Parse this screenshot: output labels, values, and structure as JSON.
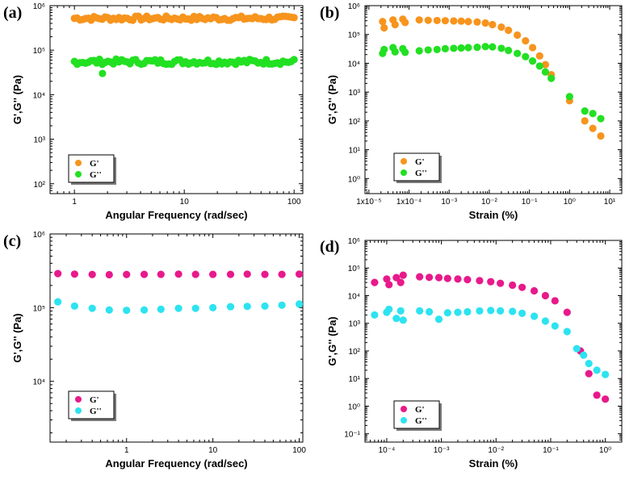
{
  "colors": {
    "orange": "#f7941d",
    "green": "#22e022",
    "pink": "#e8198b",
    "cyan": "#2de3f0",
    "axis": "#000000"
  },
  "chart_data": [
    {
      "label": "(a)",
      "type": "scatter",
      "xscale": "log",
      "yscale": "log",
      "xlim": [
        0.6,
        120
      ],
      "ylim": [
        60,
        1000000
      ],
      "xticks": [
        1,
        10,
        100
      ],
      "xtick_labels": [
        "1",
        "10",
        "100"
      ],
      "yticks": [
        100,
        1000,
        10000,
        100000,
        1000000
      ],
      "ytick_labels": [
        "10²",
        "10³",
        "10⁴",
        "10⁵",
        "10⁶"
      ],
      "xlabel": "Angular Frequency (rad/sec)",
      "ylabel": "G',G'' (Pa)",
      "legend": [
        {
          "name": "G'",
          "color": "orange"
        },
        {
          "name": "G''",
          "color": "green"
        }
      ],
      "series": [
        {
          "name": "G'",
          "color": "orange",
          "y": 520000,
          "jitter": 0.05,
          "n": 80
        },
        {
          "name": "G''",
          "color": "green",
          "y": 55000,
          "jitter": 0.06,
          "n": 80,
          "outlier": [
            1.8,
            30000
          ]
        }
      ]
    },
    {
      "label": "(b)",
      "type": "scatter",
      "xscale": "log",
      "yscale": "log",
      "xlim": [
        8e-06,
        20
      ],
      "ylim": [
        0.3,
        1000000
      ],
      "xticks": [
        1e-05,
        0.0001,
        0.001,
        0.01,
        0.1,
        1,
        10
      ],
      "xtick_labels": [
        "1x10⁻⁵",
        "1x10⁻⁴",
        "10⁻³",
        "10⁻²",
        "10⁻¹",
        "10⁰",
        "10¹"
      ],
      "yticks": [
        1,
        10,
        100,
        1000,
        10000,
        100000,
        1000000
      ],
      "ytick_labels": [
        "10⁰",
        "10¹",
        "10²",
        "10³",
        "10⁴",
        "10⁵",
        "10⁶"
      ],
      "xlabel": "Strain (%)",
      "ylabel": "G',G'' (Pa)",
      "legend": [
        {
          "name": "G'",
          "color": "orange"
        },
        {
          "name": "G''",
          "color": "green"
        }
      ],
      "series": [
        {
          "name": "G'",
          "color": "orange",
          "points": [
            [
              2.2e-05,
              280000
            ],
            [
              2.4e-05,
              170000
            ],
            [
              4e-05,
              320000
            ],
            [
              4.5e-05,
              220000
            ],
            [
              7e-05,
              340000
            ],
            [
              8e-05,
              260000
            ],
            [
              0.00018,
              320000
            ],
            [
              0.0003,
              310000
            ],
            [
              0.0005,
              305000
            ],
            [
              0.0008,
              300000
            ],
            [
              0.0013,
              295000
            ],
            [
              0.002,
              290000
            ],
            [
              0.003,
              280000
            ],
            [
              0.005,
              270000
            ],
            [
              0.008,
              250000
            ],
            [
              0.012,
              220000
            ],
            [
              0.02,
              180000
            ],
            [
              0.03,
              140000
            ],
            [
              0.05,
              95000
            ],
            [
              0.08,
              60000
            ],
            [
              0.12,
              35000
            ],
            [
              0.18,
              18000
            ],
            [
              0.25,
              9000
            ],
            [
              0.35,
              4000
            ],
            [
              1.0,
              500
            ],
            [
              2.4,
              100
            ],
            [
              3.8,
              55
            ],
            [
              6.0,
              30
            ]
          ]
        },
        {
          "name": "G''",
          "color": "green",
          "points": [
            [
              2.2e-05,
              22000
            ],
            [
              2.4e-05,
              30000
            ],
            [
              4e-05,
              35000
            ],
            [
              4.5e-05,
              25000
            ],
            [
              7e-05,
              32000
            ],
            [
              8e-05,
              24000
            ],
            [
              0.00018,
              27000
            ],
            [
              0.0003,
              29000
            ],
            [
              0.0005,
              30000
            ],
            [
              0.0008,
              32000
            ],
            [
              0.0013,
              33000
            ],
            [
              0.002,
              34000
            ],
            [
              0.003,
              35000
            ],
            [
              0.005,
              36000
            ],
            [
              0.008,
              38000
            ],
            [
              0.012,
              37000
            ],
            [
              0.02,
              33000
            ],
            [
              0.03,
              28000
            ],
            [
              0.05,
              22000
            ],
            [
              0.08,
              17000
            ],
            [
              0.12,
              12000
            ],
            [
              0.18,
              8000
            ],
            [
              0.25,
              5000
            ],
            [
              0.35,
              3000
            ],
            [
              1.0,
              700
            ],
            [
              2.4,
              220
            ],
            [
              3.8,
              180
            ],
            [
              6.0,
              120
            ]
          ]
        }
      ]
    },
    {
      "label": "(c)",
      "type": "scatter",
      "xscale": "log",
      "yscale": "log",
      "xlim": [
        0.13,
        110
      ],
      "ylim": [
        1500,
        1000000
      ],
      "xticks": [
        1,
        10,
        100
      ],
      "xtick_labels": [
        "1",
        "10",
        "100"
      ],
      "yticks": [
        10000,
        100000,
        1000000
      ],
      "ytick_labels": [
        "10⁴",
        "10⁵",
        "10⁶"
      ],
      "xlabel": "Angular Frequency (rad/sec)",
      "ylabel": "G',G'' (Pa)",
      "legend": [
        {
          "name": "G'",
          "color": "pink"
        },
        {
          "name": "G''",
          "color": "cyan"
        }
      ],
      "series": [
        {
          "name": "G'",
          "color": "pink",
          "points": [
            [
              0.16,
              290000
            ],
            [
              0.25,
              285000
            ],
            [
              0.4,
              282000
            ],
            [
              0.63,
              280000
            ],
            [
              1.0,
              282000
            ],
            [
              1.6,
              283000
            ],
            [
              2.5,
              283000
            ],
            [
              4.0,
              285000
            ],
            [
              6.3,
              283000
            ],
            [
              10,
              283000
            ],
            [
              16,
              283000
            ],
            [
              25,
              285000
            ],
            [
              40,
              283000
            ],
            [
              63,
              283000
            ],
            [
              100,
              285000
            ]
          ]
        },
        {
          "name": "G''",
          "color": "cyan",
          "points": [
            [
              0.16,
              120000
            ],
            [
              0.25,
              105000
            ],
            [
              0.4,
              98000
            ],
            [
              0.63,
              93000
            ],
            [
              1.0,
              92000
            ],
            [
              1.6,
              93000
            ],
            [
              2.5,
              95000
            ],
            [
              4.0,
              98000
            ],
            [
              6.3,
              98000
            ],
            [
              10,
              100000
            ],
            [
              16,
              103000
            ],
            [
              25,
              104000
            ],
            [
              40,
              105000
            ],
            [
              63,
              108000
            ],
            [
              100,
              112000
            ]
          ]
        }
      ]
    },
    {
      "label": "(d)",
      "type": "scatter",
      "xscale": "log",
      "yscale": "log",
      "xlim": [
        4e-05,
        2
      ],
      "ylim": [
        0.05,
        1000000
      ],
      "xticks": [
        0.0001,
        0.001,
        0.01,
        0.1,
        1
      ],
      "xtick_labels": [
        "10⁻⁴",
        "10⁻³",
        "10⁻²",
        "10⁻¹",
        "10⁰"
      ],
      "yticks": [
        0.1,
        1,
        10,
        100,
        1000,
        10000,
        100000,
        1000000
      ],
      "ytick_labels": [
        "10⁻¹",
        "10⁰",
        "10¹",
        "10²",
        "10³",
        "10⁴",
        "10⁵",
        "10⁶"
      ],
      "xlabel": "Strain (%)",
      "ylabel": "G',G'' (Pa)",
      "legend": [
        {
          "name": "G'",
          "color": "pink"
        },
        {
          "name": "G''",
          "color": "cyan"
        }
      ],
      "series": [
        {
          "name": "G'",
          "color": "pink",
          "points": [
            [
              6e-05,
              30000
            ],
            [
              0.0001,
              40000
            ],
            [
              0.00011,
              25000
            ],
            [
              0.00015,
              45000
            ],
            [
              0.00018,
              30000
            ],
            [
              0.0002,
              55000
            ],
            [
              0.0004,
              48000
            ],
            [
              0.0006,
              46000
            ],
            [
              0.0009,
              45000
            ],
            [
              0.0013,
              42000
            ],
            [
              0.002,
              40000
            ],
            [
              0.003,
              38000
            ],
            [
              0.005,
              35000
            ],
            [
              0.008,
              32000
            ],
            [
              0.012,
              28000
            ],
            [
              0.02,
              24000
            ],
            [
              0.03,
              20000
            ],
            [
              0.05,
              15000
            ],
            [
              0.08,
              10000
            ],
            [
              0.12,
              6500
            ],
            [
              0.2,
              2500
            ],
            [
              0.35,
              100
            ],
            [
              0.5,
              15
            ],
            [
              0.7,
              2.5
            ],
            [
              1.0,
              1.8
            ]
          ]
        },
        {
          "name": "G''",
          "color": "cyan",
          "points": [
            [
              6e-05,
              2000
            ],
            [
              0.0001,
              2500
            ],
            [
              0.00011,
              3200
            ],
            [
              0.00015,
              1500
            ],
            [
              0.00018,
              2800
            ],
            [
              0.0002,
              1300
            ],
            [
              0.0004,
              2800
            ],
            [
              0.0006,
              2600
            ],
            [
              0.0009,
              1400
            ],
            [
              0.0013,
              2400
            ],
            [
              0.002,
              2500
            ],
            [
              0.003,
              2600
            ],
            [
              0.005,
              2800
            ],
            [
              0.008,
              2900
            ],
            [
              0.012,
              2800
            ],
            [
              0.02,
              2700
            ],
            [
              0.03,
              2300
            ],
            [
              0.05,
              1800
            ],
            [
              0.08,
              1200
            ],
            [
              0.12,
              800
            ],
            [
              0.2,
              500
            ],
            [
              0.3,
              120
            ],
            [
              0.4,
              70
            ],
            [
              0.5,
              35
            ],
            [
              0.7,
              20
            ],
            [
              1.0,
              14
            ]
          ]
        }
      ]
    }
  ]
}
